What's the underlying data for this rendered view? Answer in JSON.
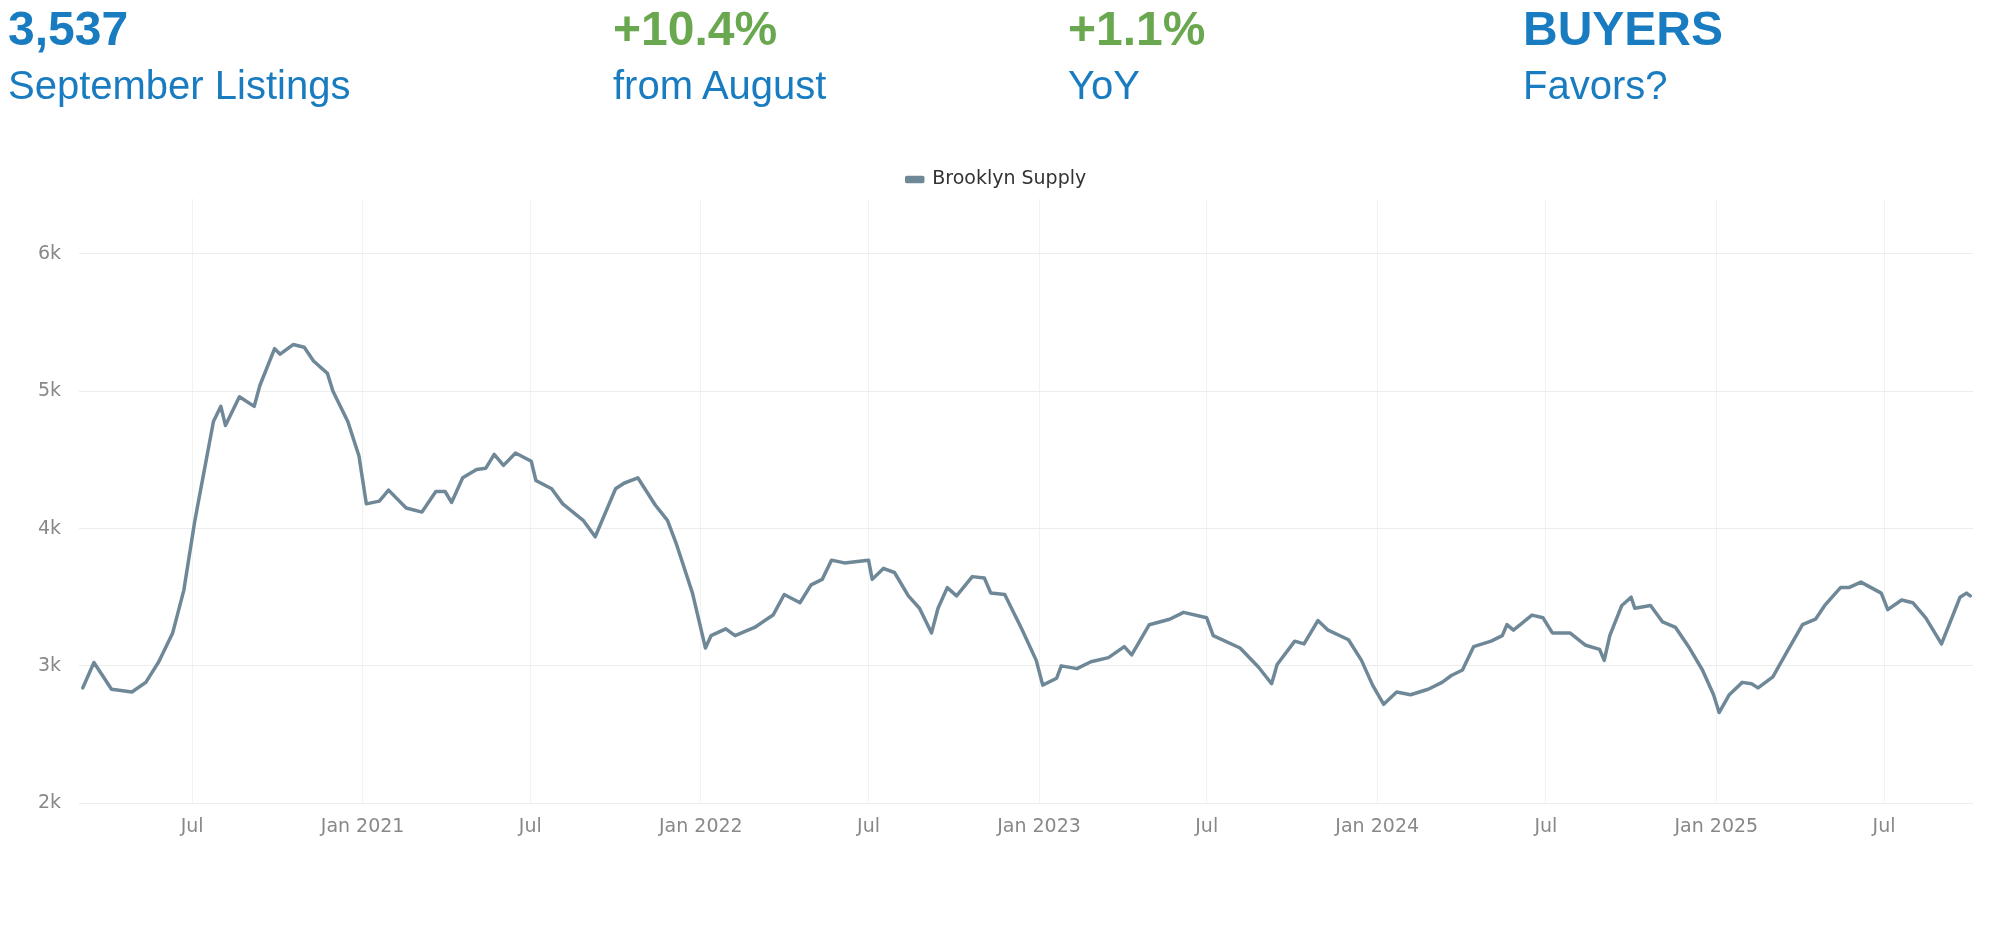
{
  "chart_data": {
    "type": "line",
    "annotations": [
      "3,537",
      "September Listings",
      "+10.4%",
      "from August",
      "+1.1%",
      "YoY",
      "BUYERS",
      "Favors?"
    ],
    "x": [
      "2020-03-05",
      "2020-03-17",
      "2020-04-05",
      "2020-04-27",
      "2020-05-12",
      "2020-05-26",
      "2020-06-10",
      "2020-06-22",
      "2020-07-04",
      "2020-07-14",
      "2020-07-24",
      "2020-08-01",
      "2020-08-06",
      "2020-08-21",
      "2020-09-06",
      "2020-09-12",
      "2020-09-28",
      "2020-10-04",
      "2020-10-18",
      "2020-10-30",
      "2020-11-09",
      "2020-11-24",
      "2020-11-30",
      "2020-12-16",
      "2020-12-28",
      "2021-01-05",
      "2021-01-19",
      "2021-01-29",
      "2021-02-17",
      "2021-03-06",
      "2021-03-21",
      "2021-03-31",
      "2021-04-07",
      "2021-04-19",
      "2021-05-04",
      "2021-05-14",
      "2021-05-23",
      "2021-06-02",
      "2021-06-15",
      "2021-07-02",
      "2021-07-07",
      "2021-07-24",
      "2021-08-05",
      "2021-08-27",
      "2021-09-09",
      "2021-10-01",
      "2021-10-10",
      "2021-10-25",
      "2021-11-13",
      "2021-11-26",
      "2021-12-05",
      "2021-12-23",
      "2022-01-06",
      "2022-01-12",
      "2022-01-28",
      "2022-02-07",
      "2022-02-28",
      "2022-03-20",
      "2022-04-01",
      "2022-04-18",
      "2022-04-30",
      "2022-05-12",
      "2022-05-22",
      "2022-06-05",
      "2022-07-01",
      "2022-07-05",
      "2022-07-17",
      "2022-07-29",
      "2022-08-13",
      "2022-08-25",
      "2022-09-07",
      "2022-09-14",
      "2022-09-24",
      "2022-10-04",
      "2022-10-21",
      "2022-11-03",
      "2022-11-10",
      "2022-11-25",
      "2022-12-14",
      "2022-12-29",
      "2023-01-05",
      "2023-01-20",
      "2023-01-25",
      "2023-02-11",
      "2023-02-26",
      "2023-03-17",
      "2023-04-03",
      "2023-04-11",
      "2023-04-30",
      "2023-05-22",
      "2023-06-06",
      "2023-07-01",
      "2023-07-08",
      "2023-08-06",
      "2023-08-26",
      "2023-09-09",
      "2023-09-15",
      "2023-10-04",
      "2023-10-14",
      "2023-10-29",
      "2023-11-09",
      "2023-12-01",
      "2023-12-15",
      "2023-12-27",
      "2024-01-08",
      "2024-01-22",
      "2024-02-06",
      "2024-02-25",
      "2024-03-11",
      "2024-03-21",
      "2024-04-02",
      "2024-04-14",
      "2024-05-03",
      "2024-05-15",
      "2024-05-20",
      "2024-05-27",
      "2024-06-16",
      "2024-06-28",
      "2024-07-08",
      "2024-07-27",
      "2024-08-13",
      "2024-08-28",
      "2024-09-02",
      "2024-09-08",
      "2024-09-21",
      "2024-10-01",
      "2024-10-05",
      "2024-10-22",
      "2024-11-04",
      "2024-11-18",
      "2024-12-03",
      "2024-12-17",
      "2024-12-29",
      "2025-01-04",
      "2025-01-15",
      "2025-01-29",
      "2025-02-08",
      "2025-02-15",
      "2025-03-03",
      "2025-03-18",
      "2025-04-04",
      "2025-04-18",
      "2025-04-28",
      "2025-05-15",
      "2025-05-24",
      "2025-06-06",
      "2025-06-28",
      "2025-07-05",
      "2025-07-20",
      "2025-08-01",
      "2025-08-15",
      "2025-09-01",
      "2025-09-11",
      "2025-09-21",
      "2025-09-28",
      "2025-10-02"
    ],
    "series": [
      {
        "name": "Brooklyn Supply",
        "color": "#6f8898",
        "values": [
          2840,
          3025,
          2830,
          2810,
          2880,
          3030,
          3240,
          3550,
          4060,
          4420,
          4780,
          4890,
          4750,
          4960,
          4890,
          5040,
          5310,
          5270,
          5340,
          5320,
          5220,
          5130,
          5000,
          4780,
          4530,
          4180,
          4200,
          4280,
          4150,
          4120,
          4270,
          4270,
          4190,
          4370,
          4430,
          4440,
          4540,
          4460,
          4550,
          4490,
          4350,
          4290,
          4180,
          4060,
          3940,
          4290,
          4330,
          4370,
          4170,
          4060,
          3900,
          3530,
          3130,
          3220,
          3270,
          3220,
          3280,
          3370,
          3520,
          3460,
          3590,
          3630,
          3770,
          3750,
          3770,
          3630,
          3710,
          3680,
          3510,
          3420,
          3240,
          3420,
          3570,
          3510,
          3650,
          3640,
          3530,
          3520,
          3260,
          3040,
          2860,
          2910,
          3000,
          2980,
          3030,
          3060,
          3140,
          3080,
          3300,
          3340,
          3390,
          3350,
          3220,
          3130,
          2990,
          2870,
          3010,
          3180,
          3160,
          3330,
          3260,
          3190,
          3040,
          2860,
          2720,
          2810,
          2790,
          2830,
          2880,
          2930,
          2970,
          3140,
          3180,
          3220,
          3300,
          3260,
          3370,
          3350,
          3240,
          3240,
          3150,
          3120,
          3040,
          3220,
          3440,
          3500,
          3420,
          3440,
          3320,
          3280,
          3130,
          2970,
          2790,
          2660,
          2790,
          2880,
          2870,
          2840,
          2920,
          3100,
          3300,
          3340,
          3440,
          3570,
          3570,
          3610,
          3530,
          3410,
          3480,
          3460,
          3350,
          3160,
          3330,
          3500,
          3530,
          3510
        ]
      }
    ],
    "xlim": [
      "2020-03-01",
      "2025-10-05"
    ],
    "xticks": [
      {
        "value": "2020-07-01",
        "label": "Jul"
      },
      {
        "value": "2021-01-01",
        "label": "Jan 2021"
      },
      {
        "value": "2021-07-01",
        "label": "Jul"
      },
      {
        "value": "2022-01-01",
        "label": "Jan 2022"
      },
      {
        "value": "2022-07-01",
        "label": "Jul"
      },
      {
        "value": "2023-01-01",
        "label": "Jan 2023"
      },
      {
        "value": "2023-07-01",
        "label": "Jul"
      },
      {
        "value": "2024-01-01",
        "label": "Jan 2024"
      },
      {
        "value": "2024-07-01",
        "label": "Jul"
      },
      {
        "value": "2025-01-01",
        "label": "Jan 2025"
      },
      {
        "value": "2025-07-01",
        "label": "Jul"
      }
    ],
    "ylim": [
      2000,
      6400
    ],
    "yticks": [
      {
        "value": 2000,
        "label": "2k"
      },
      {
        "value": 3000,
        "label": "3k"
      },
      {
        "value": 4000,
        "label": "4k"
      },
      {
        "value": 5000,
        "label": "5k"
      },
      {
        "value": 6000,
        "label": "6k"
      }
    ],
    "grid": true,
    "legend": "top",
    "marker": "none",
    "line_style": "solid"
  }
}
